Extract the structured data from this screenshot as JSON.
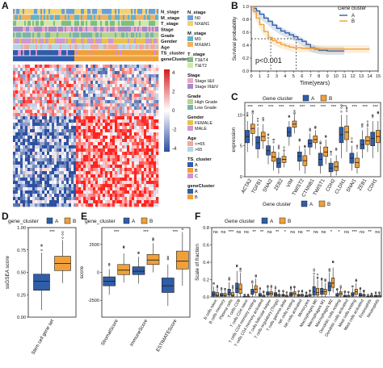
{
  "colors": {
    "cluster_A": "#2f5da8",
    "cluster_B": "#f0a03a",
    "heat_high": "#d7191c",
    "heat_mid": "#ffffff",
    "heat_low": "#2c4da0",
    "pvalue_fill": "#555555"
  },
  "panel_letters": {
    "A": "A",
    "B": "B",
    "C": "C",
    "D": "D",
    "E": "E",
    "F": "F"
  },
  "heatmap": {
    "annotation_rows": [
      "N_stage",
      "M_stage",
      "T_stage",
      "Stage",
      "Grade",
      "Gender",
      "Age",
      "TS_cluster",
      "geneCluster"
    ],
    "colorbar_ticks": [
      "4",
      "2",
      "0",
      "-2",
      "-4"
    ],
    "legend": [
      {
        "title": "N_stage",
        "items": [
          {
            "label": "N0",
            "color": "#6aa0d8"
          },
          {
            "label": "NX&N1",
            "color": "#f2d36b"
          }
        ]
      },
      {
        "title": "M_stage",
        "items": [
          {
            "label": "M0",
            "color": "#63b3c9"
          },
          {
            "label": "MX&M1",
            "color": "#f0b05e"
          }
        ]
      },
      {
        "title": "T_stage",
        "items": [
          {
            "label": "T3&T4",
            "color": "#7dbf7c"
          },
          {
            "label": "TI&T2",
            "color": "#d1e8a5"
          }
        ]
      },
      {
        "title": "Stage",
        "items": [
          {
            "label": "Stage I&II",
            "color": "#e9a9c6"
          },
          {
            "label": "Stage III&IV",
            "color": "#a58bc6"
          }
        ]
      },
      {
        "title": "Grade",
        "items": [
          {
            "label": "High Grade",
            "color": "#b7d38f"
          },
          {
            "label": "Low Grade",
            "color": "#78b5a9"
          }
        ]
      },
      {
        "title": "Gender",
        "items": [
          {
            "label": "FEMALE",
            "color": "#e8c24c"
          },
          {
            "label": "MALE",
            "color": "#c99bd3"
          }
        ]
      },
      {
        "title": "Age",
        "items": [
          {
            "label": "<=65",
            "color": "#f3a89b"
          },
          {
            "label": ">65",
            "color": "#b3d5e6"
          }
        ]
      },
      {
        "title": "TS_cluster",
        "items": [
          {
            "label": "A",
            "color": "#2f5da8"
          },
          {
            "label": "B",
            "color": "#f0a03a"
          },
          {
            "label": "C",
            "color": "#d98cd2"
          }
        ]
      },
      {
        "title": "geneCluster",
        "items": [
          {
            "label": "A",
            "color": "#2f5da8"
          },
          {
            "label": "B",
            "color": "#f0a03a"
          }
        ]
      }
    ]
  },
  "km": {
    "ylabel": "Survival probability",
    "xlabel": "Time(years)",
    "legend_title": "Gene cluster",
    "legend_items": [
      "A",
      "B"
    ],
    "pvalue": "p<0.001",
    "yticks": [
      "1.0",
      "0.8",
      "0.6",
      "0.4",
      "0.2",
      "0.0"
    ],
    "xticks": [
      "0",
      "1",
      "2",
      "3",
      "4",
      "5",
      "6",
      "7",
      "8",
      "9",
      "10",
      "11",
      "12",
      "13",
      "14",
      "15"
    ],
    "median_A": 5.3,
    "median_B": 2.3,
    "series": [
      {
        "name": "A",
        "points": [
          [
            0,
            1.0
          ],
          [
            0.3,
            0.97
          ],
          [
            0.6,
            0.93
          ],
          [
            1,
            0.88
          ],
          [
            1.5,
            0.82
          ],
          [
            2,
            0.77
          ],
          [
            2.5,
            0.71
          ],
          [
            3,
            0.66
          ],
          [
            3.5,
            0.62
          ],
          [
            4,
            0.59
          ],
          [
            4.5,
            0.56
          ],
          [
            5,
            0.53
          ],
          [
            5.5,
            0.49
          ],
          [
            6,
            0.46
          ],
          [
            6.5,
            0.41
          ],
          [
            7,
            0.36
          ],
          [
            7.5,
            0.34
          ],
          [
            8,
            0.32
          ],
          [
            9,
            0.31
          ],
          [
            10,
            0.31
          ],
          [
            11,
            0.31
          ]
        ]
      },
      {
        "name": "B",
        "points": [
          [
            0,
            1.0
          ],
          [
            0.3,
            0.92
          ],
          [
            0.6,
            0.82
          ],
          [
            1,
            0.72
          ],
          [
            1.5,
            0.61
          ],
          [
            2,
            0.52
          ],
          [
            2.5,
            0.47
          ],
          [
            3,
            0.44
          ],
          [
            3.5,
            0.41
          ],
          [
            4,
            0.39
          ],
          [
            4.5,
            0.37
          ],
          [
            5,
            0.36
          ],
          [
            6,
            0.35
          ],
          [
            7,
            0.35
          ],
          [
            8,
            0.34
          ],
          [
            9,
            0.34
          ],
          [
            10,
            0.34
          ],
          [
            11,
            0.34
          ],
          [
            12,
            0.34
          ],
          [
            13,
            0.34
          ],
          [
            14,
            0.34
          ]
        ]
      }
    ]
  },
  "boxC": {
    "legend_title": "Gene cluster",
    "legend_items": [
      "A",
      "B"
    ],
    "ylabel": "expression",
    "yticks": [
      "10",
      "5",
      "0"
    ],
    "ylim": [
      0,
      12
    ],
    "sig": "***",
    "genes": [
      "ACTA2",
      "TGFB1",
      "SNAI2",
      "ZEB2",
      "VIM",
      "TWIST2",
      "CTNNB1",
      "TWIST1",
      "CDH2",
      "CLDN1",
      "SNAI1",
      "ZEB1",
      "CDH1"
    ],
    "A": [
      [
        4,
        5.5,
        6.5,
        7.5,
        9
      ],
      [
        3,
        4.5,
        5.5,
        6.5,
        8
      ],
      [
        2,
        3.5,
        4.2,
        5,
        6
      ],
      [
        0.5,
        1.5,
        2.2,
        3,
        4
      ],
      [
        5,
        6.5,
        7.2,
        8,
        9
      ],
      [
        1,
        2.5,
        3.3,
        4,
        5
      ],
      [
        3.5,
        4.8,
        5.4,
        6,
        7
      ],
      [
        0.5,
        1.8,
        2.8,
        3.8,
        5
      ],
      [
        0,
        0.8,
        1.4,
        2.2,
        3
      ],
      [
        3,
        5.5,
        6.8,
        8,
        10
      ],
      [
        1,
        2.2,
        3,
        3.8,
        5
      ],
      [
        3,
        4.5,
        5.2,
        6,
        7.5
      ],
      [
        3,
        5,
        6.2,
        7.2,
        9
      ]
    ],
    "B": [
      [
        5,
        7,
        7.8,
        8.5,
        10
      ],
      [
        4.5,
        5.8,
        6.5,
        7.2,
        8.5
      ],
      [
        1,
        2.5,
        3.2,
        4,
        5
      ],
      [
        1.5,
        2.3,
        2.8,
        3.3,
        4
      ],
      [
        7,
        8,
        8.5,
        9,
        10
      ],
      [
        0.5,
        1.8,
        2.6,
        3.4,
        4.5
      ],
      [
        4.5,
        5.5,
        6,
        6.6,
        7.5
      ],
      [
        2,
        3.3,
        4,
        4.8,
        6
      ],
      [
        0.2,
        1,
        1.6,
        2.4,
        3.5
      ],
      [
        4,
        6,
        7.2,
        8.2,
        10
      ],
      [
        0.5,
        1.5,
        2.3,
        3,
        4
      ],
      [
        4,
        5.2,
        5.8,
        6.5,
        8
      ],
      [
        4,
        5.5,
        6.5,
        7.5,
        9
      ]
    ]
  },
  "boxD": {
    "legend_title": "gene_cluster",
    "legend_items": [
      "A",
      "B"
    ],
    "ylabel": "ssGSEA score",
    "yticks": [
      "1.00",
      "0.75",
      "0.50",
      "0.25",
      "0.00"
    ],
    "ylim": [
      0,
      1.0
    ],
    "sig": "***",
    "categories": [
      "Stem cell gene set"
    ],
    "A": [
      [
        0.08,
        0.3,
        0.4,
        0.48,
        0.72
      ]
    ],
    "B": [
      [
        0.38,
        0.52,
        0.6,
        0.68,
        0.86
      ]
    ]
  },
  "boxE": {
    "legend_title": "gene_cluster",
    "legend_items": [
      "A",
      "B"
    ],
    "ylabel": "score",
    "yticks": [
      "2500",
      "0",
      "-2500"
    ],
    "ylim": [
      -4000,
      4000
    ],
    "sig": "***",
    "categories": [
      "StromalScore",
      "ImmuneScore",
      "ESTIMATEScore"
    ],
    "A": [
      [
        -2000,
        -1200,
        -800,
        -400,
        300
      ],
      [
        -1000,
        -200,
        100,
        500,
        1400
      ],
      [
        -3000,
        -1800,
        -1200,
        -500,
        700
      ]
    ],
    "B": [
      [
        -900,
        -200,
        200,
        700,
        1700
      ],
      [
        0,
        700,
        1100,
        1600,
        2600
      ],
      [
        -1200,
        300,
        1000,
        1900,
        3600
      ]
    ]
  },
  "boxF": {
    "legend_title": "Gene cluster",
    "legend_items": [
      "A",
      "B"
    ],
    "ylabel": "Scale of fraction",
    "yticks": [
      "0.8",
      "0.6",
      "0.4",
      "0.2",
      "0.0"
    ],
    "ylim": [
      0,
      0.8
    ],
    "cells": [
      "B cells naive",
      "B cells memory",
      "Plasma cells",
      "T cells CD8",
      "T cells CD4 naive",
      "T cells CD4 memory resting",
      "T cells CD4 memory activated",
      "T cells follicular helper",
      "T cells regulatory (Tregs)",
      "T cells gamma delta",
      "NK cells resting",
      "NK cells activated",
      "Monocytes",
      "Macrophages M0",
      "Macrophages M1",
      "Macrophages M2",
      "Dendritic cells resting",
      "Dendritic cells activated",
      "Mast cells resting",
      "Mast cells activated",
      "Eosinophils",
      "Neutrophils"
    ],
    "sig": [
      "ns",
      "ns",
      "***",
      "ns",
      "ns",
      "**",
      "**",
      "ns",
      "**",
      "*",
      "ns",
      "ns",
      "**",
      "ns",
      "ns",
      "*",
      "*",
      "ns",
      "***",
      "ns",
      "**",
      "ns"
    ],
    "A": [
      [
        0,
        0.01,
        0.03,
        0.06,
        0.12
      ],
      [
        0,
        0.01,
        0.02,
        0.04,
        0.08
      ],
      [
        0,
        0.02,
        0.05,
        0.09,
        0.17
      ],
      [
        0,
        0.05,
        0.1,
        0.16,
        0.3
      ],
      [
        0,
        0,
        0,
        0.01,
        0.02
      ],
      [
        0,
        0.03,
        0.06,
        0.09,
        0.15
      ],
      [
        0,
        0.01,
        0.02,
        0.04,
        0.08
      ],
      [
        0,
        0.02,
        0.04,
        0.06,
        0.1
      ],
      [
        0,
        0.01,
        0.03,
        0.05,
        0.09
      ],
      [
        0,
        0.01,
        0.02,
        0.03,
        0.06
      ],
      [
        0,
        0.01,
        0.03,
        0.05,
        0.09
      ],
      [
        0,
        0.01,
        0.02,
        0.03,
        0.06
      ],
      [
        0,
        0,
        0.01,
        0.02,
        0.04
      ],
      [
        0,
        0.02,
        0.06,
        0.12,
        0.25
      ],
      [
        0,
        0.03,
        0.06,
        0.1,
        0.18
      ],
      [
        0.02,
        0.07,
        0.12,
        0.17,
        0.28
      ],
      [
        0,
        0.01,
        0.02,
        0.04,
        0.07
      ],
      [
        0,
        0,
        0.01,
        0.02,
        0.05
      ],
      [
        0,
        0.01,
        0.03,
        0.05,
        0.1
      ],
      [
        0,
        0.01,
        0.02,
        0.04,
        0.08
      ],
      [
        0,
        0,
        0,
        0.01,
        0.02
      ],
      [
        0,
        0,
        0.01,
        0.02,
        0.04
      ]
    ],
    "B": [
      [
        0,
        0.01,
        0.02,
        0.05,
        0.1
      ],
      [
        0,
        0.01,
        0.02,
        0.04,
        0.08
      ],
      [
        0,
        0.01,
        0.02,
        0.05,
        0.1
      ],
      [
        0,
        0.04,
        0.09,
        0.15,
        0.28
      ],
      [
        0,
        0,
        0,
        0.01,
        0.02
      ],
      [
        0.01,
        0.05,
        0.09,
        0.13,
        0.21
      ],
      [
        0,
        0,
        0.01,
        0.02,
        0.05
      ],
      [
        0,
        0.02,
        0.04,
        0.06,
        0.1
      ],
      [
        0,
        0.01,
        0.02,
        0.03,
        0.06
      ],
      [
        0,
        0,
        0.01,
        0.02,
        0.04
      ],
      [
        0,
        0.02,
        0.04,
        0.06,
        0.1
      ],
      [
        0,
        0.01,
        0.02,
        0.03,
        0.06
      ],
      [
        0,
        0.01,
        0.02,
        0.03,
        0.06
      ],
      [
        0,
        0.02,
        0.05,
        0.1,
        0.2
      ],
      [
        0,
        0.03,
        0.06,
        0.09,
        0.16
      ],
      [
        0.05,
        0.11,
        0.16,
        0.22,
        0.34
      ],
      [
        0,
        0.02,
        0.04,
        0.06,
        0.1
      ],
      [
        0,
        0,
        0.01,
        0.02,
        0.05
      ],
      [
        0,
        0.03,
        0.06,
        0.09,
        0.16
      ],
      [
        0,
        0.01,
        0.02,
        0.03,
        0.06
      ],
      [
        0,
        0,
        0.01,
        0.02,
        0.03
      ],
      [
        0,
        0,
        0.01,
        0.02,
        0.04
      ]
    ]
  }
}
